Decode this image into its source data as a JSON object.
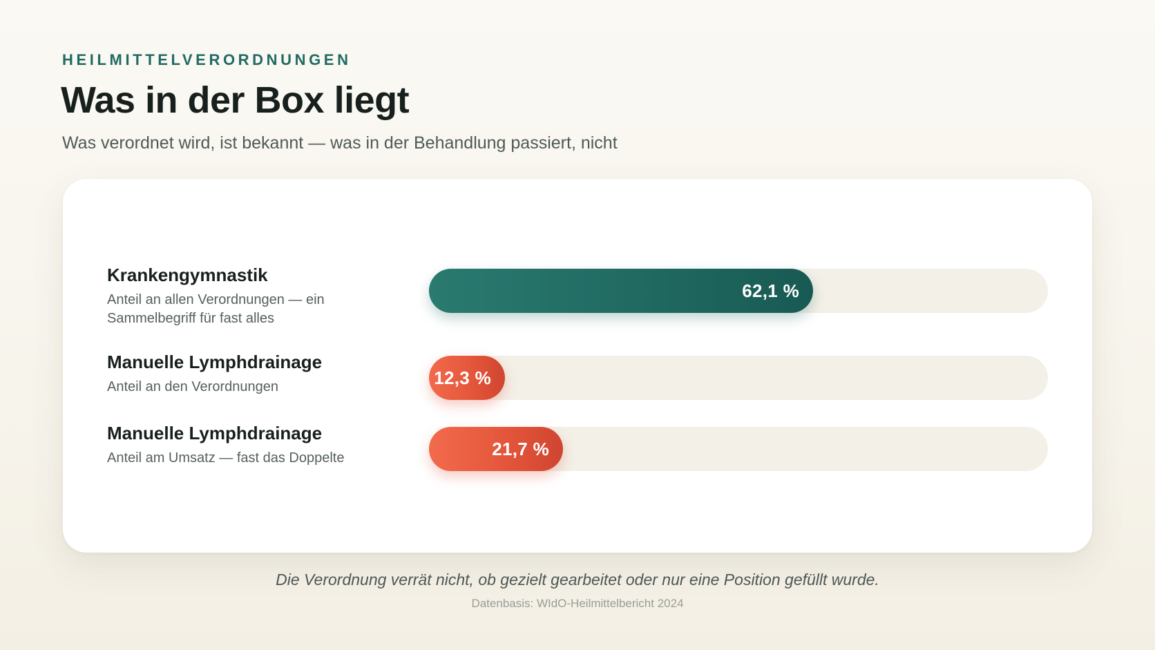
{
  "header": {
    "eyebrow": "HEILMITTELVERORDNUNGEN",
    "title": "Was in der Box liegt",
    "subtitle": "Was verordnet wird, ist bekannt — was in der Behandlung passiert, nicht"
  },
  "colors": {
    "teal": "#216a62",
    "coral": "#e8583d",
    "track": "#f3f0e8"
  },
  "chart_data": {
    "type": "bar",
    "orientation": "horizontal",
    "title": "Was in der Box liegt",
    "subtitle": "Was verordnet wird, ist bekannt — was in der Behandlung passiert, nicht",
    "xlim": [
      0,
      100
    ],
    "unit": "%",
    "grid": false,
    "bars": [
      {
        "label": "Krankengymnastik",
        "description": "Anteil an allen Verordnungen — ein Sammelbegriff für fast alles",
        "value": 62.1,
        "value_label": "62,1 %",
        "color": "teal"
      },
      {
        "label": "Manuelle Lymphdrainage",
        "description": "Anteil an den Verordnungen",
        "value": 12.3,
        "value_label": "12,3 %",
        "color": "coral"
      },
      {
        "label": "Manuelle Lymphdrainage",
        "description": "Anteil am Umsatz — fast das Doppelte",
        "value": 21.7,
        "value_label": "21,7 %",
        "color": "coral"
      }
    ]
  },
  "footer": {
    "note": "Die Verordnung verrät nicht, ob gezielt gearbeitet oder nur eine Position gefüllt wurde.",
    "source": "Datenbasis: WIdO-Heilmittelbericht 2024"
  }
}
